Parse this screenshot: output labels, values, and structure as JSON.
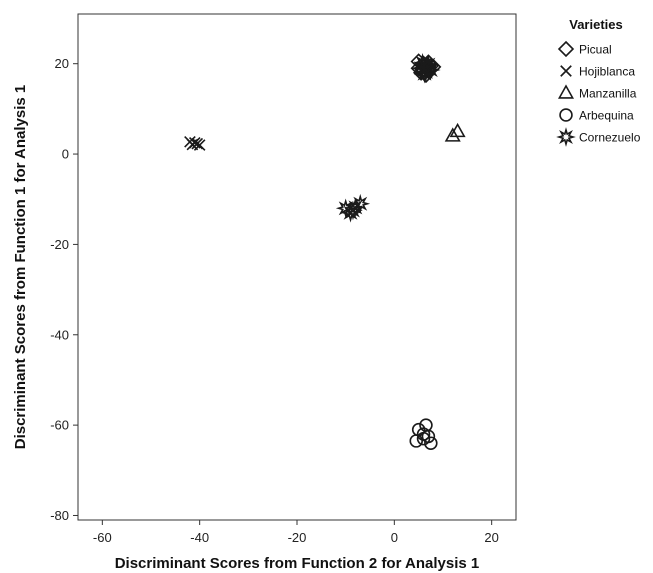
{
  "chart_data": {
    "type": "scatter",
    "title": "",
    "xlabel": "Discriminant Scores from Function 2 for Analysis 1",
    "ylabel": "Discriminant Scores from Function 1 for Analysis 1",
    "xlim": [
      -65,
      25
    ],
    "ylim": [
      -81,
      31
    ],
    "x_ticks": [
      -60,
      -40,
      -20,
      0,
      20
    ],
    "y_ticks": [
      -80,
      -60,
      -40,
      -20,
      0,
      20
    ],
    "grid": false,
    "legend_title": "Varieties",
    "legend_position": "right",
    "series": [
      {
        "name": "Picual",
        "marker": "diamond",
        "points": [
          [
            5.0,
            20.5
          ],
          [
            6.0,
            19.5
          ],
          [
            7.0,
            18.5
          ],
          [
            5.5,
            18.0
          ],
          [
            6.5,
            17.5
          ],
          [
            7.5,
            19.5
          ],
          [
            5.0,
            19.0
          ],
          [
            6.0,
            20.0
          ],
          [
            7.0,
            20.3
          ],
          [
            8.0,
            19.3
          ],
          [
            5.8,
            18.7
          ]
        ]
      },
      {
        "name": "Hojiblanca",
        "marker": "x",
        "points": [
          [
            -42.0,
            2.7
          ],
          [
            -41.0,
            2.5
          ],
          [
            -40.5,
            2.3
          ],
          [
            -41.5,
            2.1
          ],
          [
            -40.0,
            2.0
          ]
        ]
      },
      {
        "name": "Manzanilla",
        "marker": "triangle",
        "points": [
          [
            13.0,
            5.0
          ],
          [
            12.0,
            4.0
          ]
        ]
      },
      {
        "name": "Arbequina",
        "marker": "circle",
        "points": [
          [
            4.5,
            -63.5
          ],
          [
            5.0,
            -61.0
          ],
          [
            6.0,
            -62.0
          ],
          [
            6.5,
            -60.0
          ],
          [
            7.0,
            -62.5
          ],
          [
            6.0,
            -63.0
          ],
          [
            7.5,
            -64.0
          ]
        ]
      },
      {
        "name": "Cornezuelo",
        "marker": "star",
        "points": [
          [
            -10.0,
            -12.0
          ],
          [
            -9.0,
            -13.0
          ],
          [
            -8.5,
            -12.5
          ],
          [
            -7.0,
            -11.0
          ],
          [
            -8.0,
            -11.8
          ],
          [
            5.5,
            19.0
          ],
          [
            6.5,
            18.2
          ],
          [
            7.0,
            19.8
          ],
          [
            5.8,
            20.2
          ],
          [
            6.2,
            17.8
          ],
          [
            7.5,
            18.6
          ],
          [
            6.8,
            19.3
          ]
        ]
      }
    ]
  }
}
